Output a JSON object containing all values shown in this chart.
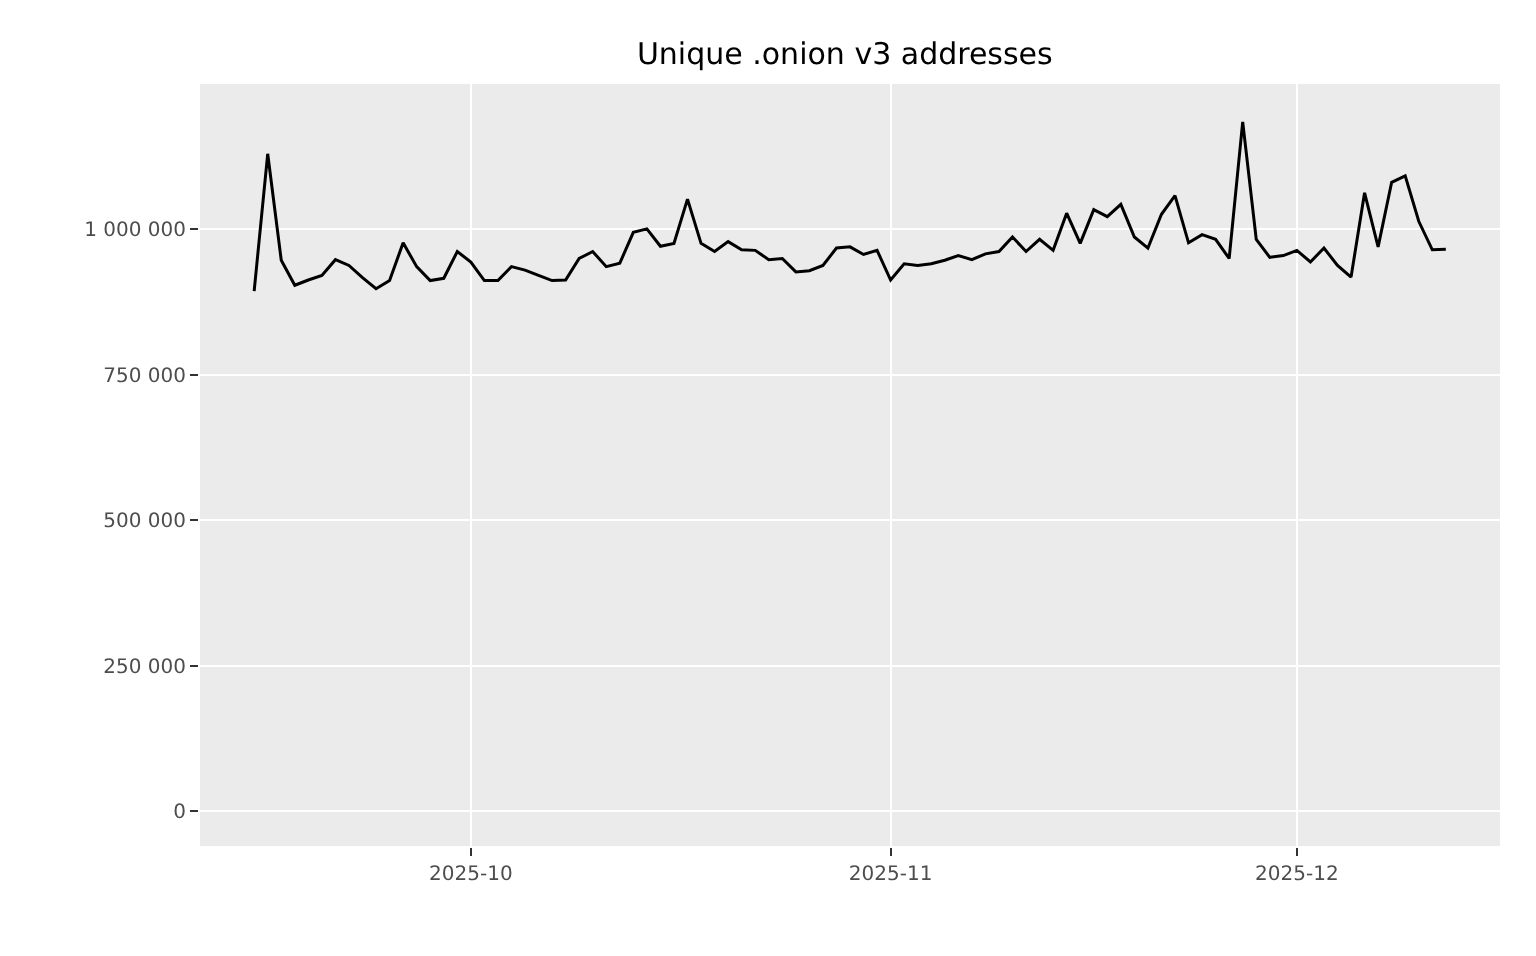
{
  "chart_data": {
    "type": "line",
    "title": "Unique .onion v3 addresses",
    "x": [
      "2025-09-15",
      "2025-09-16",
      "2025-09-17",
      "2025-09-18",
      "2025-09-19",
      "2025-09-20",
      "2025-09-21",
      "2025-09-22",
      "2025-09-23",
      "2025-09-24",
      "2025-09-25",
      "2025-09-26",
      "2025-09-27",
      "2025-09-28",
      "2025-09-29",
      "2025-09-30",
      "2025-10-01",
      "2025-10-02",
      "2025-10-03",
      "2025-10-04",
      "2025-10-05",
      "2025-10-06",
      "2025-10-07",
      "2025-10-08",
      "2025-10-09",
      "2025-10-10",
      "2025-10-11",
      "2025-10-12",
      "2025-10-13",
      "2025-10-14",
      "2025-10-15",
      "2025-10-16",
      "2025-10-17",
      "2025-10-18",
      "2025-10-19",
      "2025-10-20",
      "2025-10-21",
      "2025-10-22",
      "2025-10-23",
      "2025-10-24",
      "2025-10-25",
      "2025-10-26",
      "2025-10-27",
      "2025-10-28",
      "2025-10-29",
      "2025-10-30",
      "2025-10-31",
      "2025-11-01",
      "2025-11-02",
      "2025-11-03",
      "2025-11-04",
      "2025-11-05",
      "2025-11-06",
      "2025-11-07",
      "2025-11-08",
      "2025-11-09",
      "2025-11-10",
      "2025-11-11",
      "2025-11-12",
      "2025-11-13",
      "2025-11-14",
      "2025-11-15",
      "2025-11-16",
      "2025-11-17",
      "2025-11-18",
      "2025-11-19",
      "2025-11-20",
      "2025-11-21",
      "2025-11-22",
      "2025-11-23",
      "2025-11-24",
      "2025-11-25",
      "2025-11-26",
      "2025-11-27",
      "2025-11-28",
      "2025-11-29",
      "2025-11-30",
      "2025-12-01",
      "2025-12-02",
      "2025-12-03",
      "2025-12-04",
      "2025-12-05",
      "2025-12-06",
      "2025-12-07",
      "2025-12-08",
      "2025-12-09",
      "2025-12-10",
      "2025-12-11",
      "2025-12-12"
    ],
    "series": [
      {
        "color": "#000000",
        "values": [
          894000,
          1130000,
          947000,
          904000,
          913000,
          921000,
          948000,
          938000,
          917000,
          898000,
          912000,
          977000,
          936000,
          912000,
          916000,
          962000,
          944000,
          912000,
          912000,
          936000,
          930000,
          921000,
          912000,
          913000,
          950000,
          962000,
          936000,
          942000,
          995000,
          1001000,
          971000,
          976000,
          1052000,
          976000,
          962000,
          979000,
          965000,
          964000,
          948000,
          950000,
          927000,
          929000,
          938000,
          968000,
          970000,
          957000,
          964000,
          913000,
          941000,
          938000,
          941000,
          947000,
          955000,
          948000,
          958000,
          962000,
          987000,
          962000,
          983000,
          964000,
          1028000,
          976000,
          1034000,
          1022000,
          1043000,
          987000,
          968000,
          1026000,
          1058000,
          977000,
          991000,
          983000,
          950000,
          1185000,
          983000,
          952000,
          955000,
          964000,
          944000,
          968000,
          938000,
          918000,
          1063000,
          970000,
          1081000,
          1092000,
          1014000,
          965000,
          966000
        ]
      }
    ],
    "xlim": [
      "2025-09-11",
      "2025-12-16"
    ],
    "xticks": [
      {
        "value": "2025-10-01",
        "label": "2025-10"
      },
      {
        "value": "2025-11-01",
        "label": "2025-11"
      },
      {
        "value": "2025-12-01",
        "label": "2025-12"
      }
    ],
    "ylim": [
      -60000,
      1250000
    ],
    "yticks": [
      {
        "value": 0,
        "label": "0"
      },
      {
        "value": 250000,
        "label": "250 000"
      },
      {
        "value": 500000,
        "label": "500 000"
      },
      {
        "value": 750000,
        "label": "750 000"
      },
      {
        "value": 1000000,
        "label": "1 000 000"
      }
    ],
    "grid": true,
    "marker": "none",
    "line_style": "solid"
  }
}
